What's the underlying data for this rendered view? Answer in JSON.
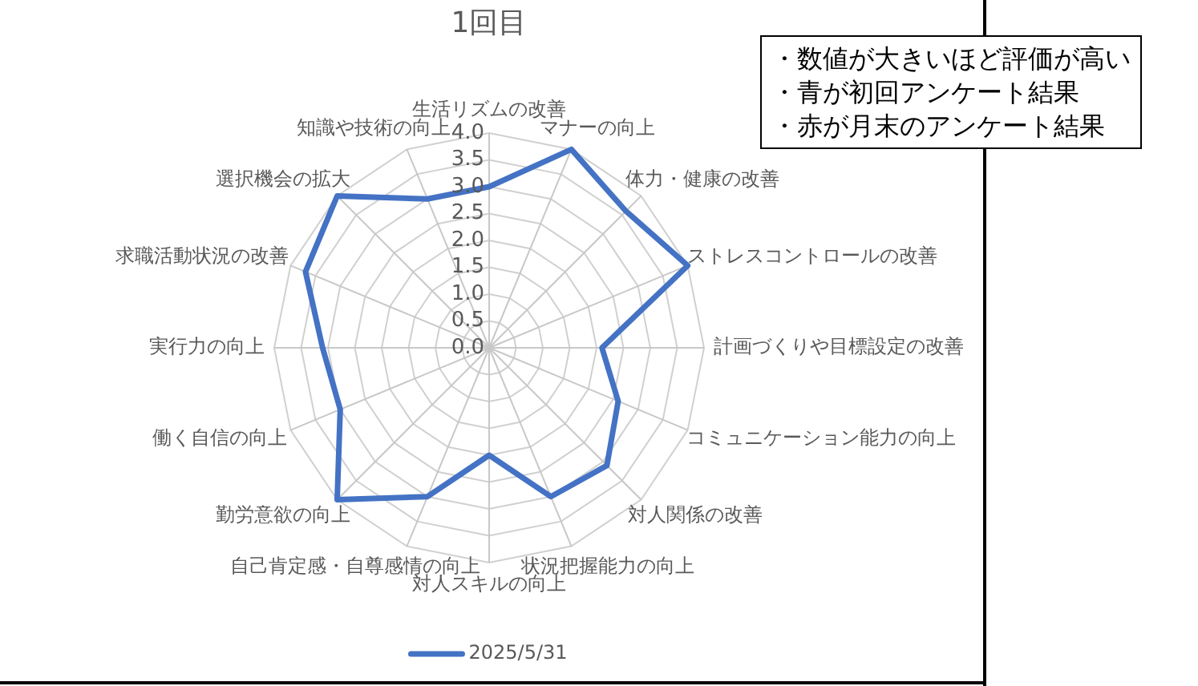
{
  "chart_data": {
    "type": "radar",
    "title": "1回目",
    "categories": [
      "生活リズムの改善",
      "マナーの向上",
      "体力・健康の改善",
      "ストレスコントロールの改善",
      "計画づくりや目標設定の改善",
      "コミュニケーション能力の向上",
      "対人関係の改善",
      "状況把握能力の向上",
      "対人スキルの向上",
      "自己肯定感・自尊感情の向上",
      "勤労意欲の向上",
      "働く自信の向上",
      "実行力の向上",
      "求職活動状況の改善",
      "選択機会の拡大",
      "知識や技術の向上"
    ],
    "series": [
      {
        "name": "2025/5/31",
        "color": "#4472c4",
        "values": [
          3.0,
          4.0,
          3.6,
          4.0,
          2.1,
          2.6,
          3.1,
          3.0,
          2.0,
          3.0,
          4.0,
          3.0,
          3.1,
          3.7,
          4.0,
          3.0
        ]
      }
    ],
    "ylim": [
      0,
      4
    ],
    "yticks": [
      {
        "value": 0,
        "label": "0.0"
      },
      {
        "value": 0.5,
        "label": "0.5"
      },
      {
        "value": 1,
        "label": "1.0"
      },
      {
        "value": 1.5,
        "label": "1.5"
      },
      {
        "value": 2,
        "label": "2.0"
      },
      {
        "value": 2.5,
        "label": "2.5"
      },
      {
        "value": 3,
        "label": "3.0"
      },
      {
        "value": 3.5,
        "label": "3.5"
      },
      {
        "value": 4,
        "label": "4.0"
      }
    ],
    "grid": true,
    "legend": "bottom",
    "marker": "none",
    "annotations": [
      "・数値が大きいほど評価が高い",
      "・青が初回アンケート結果",
      "・赤が月末のアンケート結果"
    ]
  }
}
